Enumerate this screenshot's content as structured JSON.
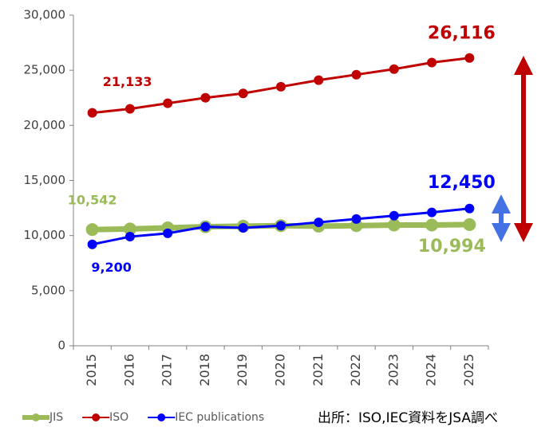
{
  "chart_data": {
    "type": "line",
    "categories": [
      "2015",
      "2016",
      "2017",
      "2018",
      "2019",
      "2020",
      "2021",
      "2022",
      "2023",
      "2024",
      "2025"
    ],
    "series": [
      {
        "name": "JIS",
        "color": "#9bbb59",
        "values": [
          10542,
          10600,
          10700,
          10800,
          10850,
          10900,
          10850,
          10900,
          10950,
          10950,
          10994
        ],
        "value_labels": [
          "10,542",
          null,
          null,
          null,
          null,
          null,
          null,
          null,
          null,
          null,
          "10,994"
        ]
      },
      {
        "name": "ISO",
        "color": "#c00000",
        "values": [
          21133,
          21500,
          22000,
          22500,
          22900,
          23500,
          24100,
          24600,
          25100,
          25700,
          26116
        ],
        "value_labels": [
          "21,133",
          null,
          null,
          null,
          null,
          null,
          null,
          null,
          null,
          null,
          "26,116"
        ]
      },
      {
        "name": "IEC publications",
        "color": "#0000ff",
        "values": [
          9200,
          9900,
          10200,
          10800,
          10700,
          10900,
          11200,
          11500,
          11800,
          12100,
          12450
        ],
        "value_labels": [
          "9,200",
          null,
          null,
          null,
          null,
          null,
          null,
          null,
          null,
          null,
          "12,450"
        ]
      }
    ],
    "ylim": [
      0,
      30000
    ],
    "yticks": [
      {
        "value": 0,
        "label": "0"
      },
      {
        "value": 5000,
        "label": "5,000"
      },
      {
        "value": 10000,
        "label": "10,000"
      },
      {
        "value": 15000,
        "label": "15,000"
      },
      {
        "value": 20000,
        "label": "20,000"
      },
      {
        "value": 25000,
        "label": "25,000"
      },
      {
        "value": 30000,
        "label": "30,000"
      }
    ],
    "source": "出所：ISO,IEC資料をJSA調べ"
  }
}
